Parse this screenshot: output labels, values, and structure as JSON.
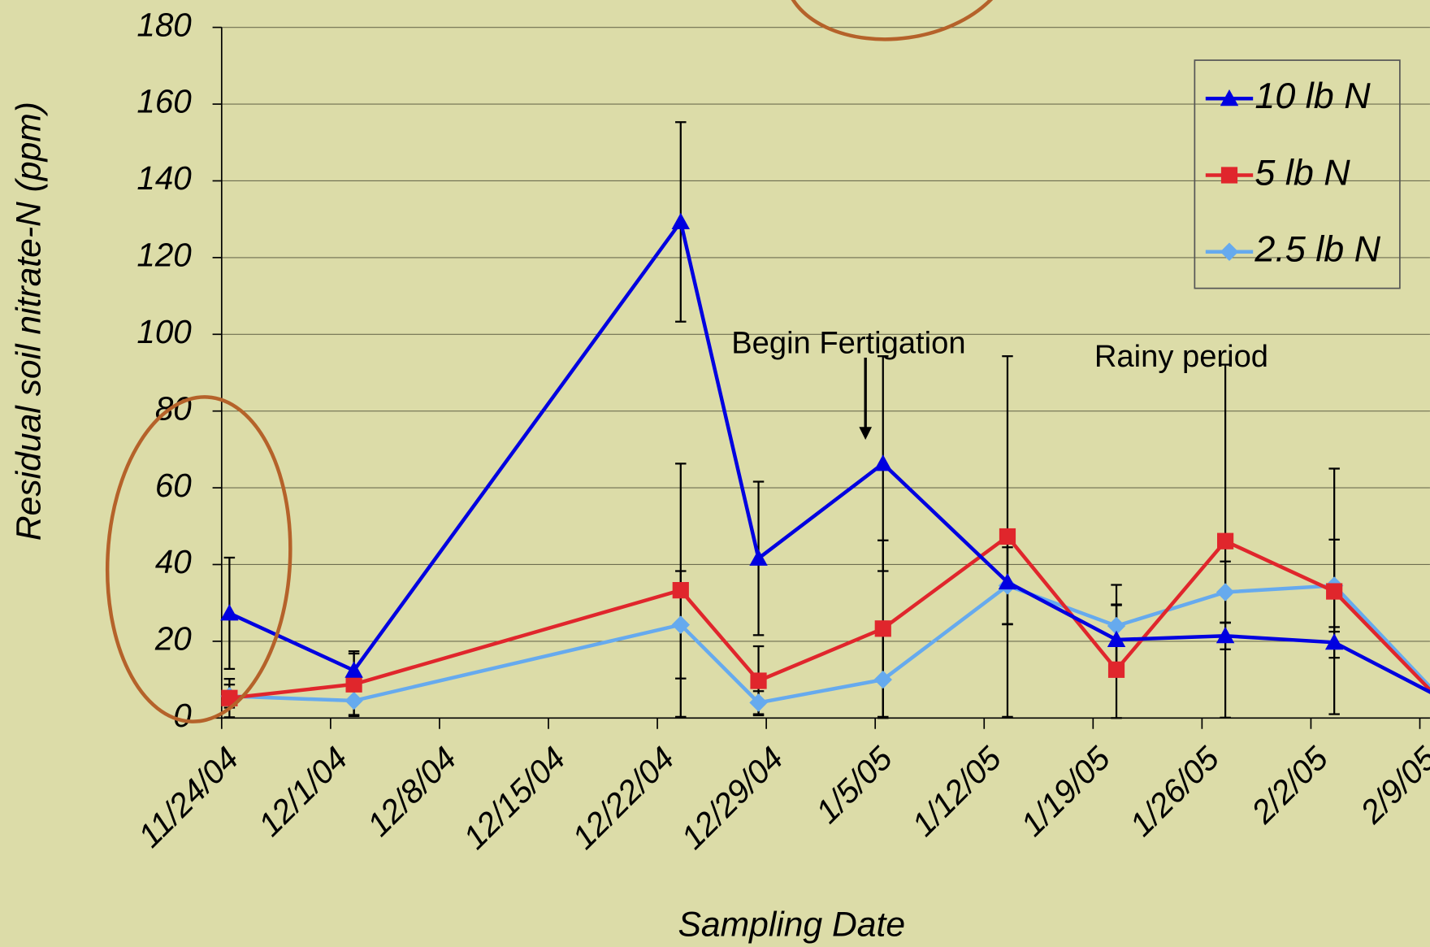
{
  "chart_data": {
    "type": "line",
    "x_label": "Sampling Date",
    "y_label": "Residual soil nitrate-N (ppm)",
    "x": [
      "11/24/04",
      "12/2/04",
      "12/23/04",
      "12/28/04",
      "1/5/05",
      "1/13/05",
      "1/20/05",
      "1/27/05",
      "2/3/05",
      "2/10/05"
    ],
    "series": [
      {
        "name": "10 lb N",
        "color": "#0000e0",
        "marker": "triangle",
        "values": [
          27.3,
          12.4,
          129.3,
          41.6,
          66.3,
          35.4,
          20.4,
          21.4,
          19.7,
          5
        ],
        "errors": [
          14.5,
          5,
          26,
          20,
          28,
          11,
          9,
          3.5,
          4,
          2
        ]
      },
      {
        "name": "5 lb N",
        "color": "#e0262c",
        "marker": "square",
        "values": [
          5.2,
          8.8,
          33.3,
          9.7,
          23.3,
          47.3,
          12.6,
          46.1,
          33,
          3.8
        ],
        "errors": [
          5,
          8,
          33,
          9,
          23,
          47,
          17,
          46,
          32,
          2
        ]
      },
      {
        "name": "2.5 lb N",
        "color": "#66aaee",
        "marker": "diamond",
        "values": [
          5.7,
          4.5,
          24.3,
          4,
          10,
          34.5,
          24,
          32.8,
          34.5,
          4.5
        ],
        "errors": [
          3,
          4,
          14,
          3,
          15,
          10,
          10.7,
          8,
          12,
          2
        ]
      }
    ],
    "xlim": [
      "11/24/04",
      "2/10/05"
    ],
    "xticks": [
      "11/24/04",
      "12/1/04",
      "12/8/04",
      "12/15/04",
      "12/22/04",
      "12/29/04",
      "1/5/05",
      "1/12/05",
      "1/19/05",
      "1/26/05",
      "2/2/05",
      "2/9/05"
    ],
    "ylim": [
      0,
      180
    ],
    "yticks": [
      0,
      20,
      40,
      60,
      80,
      100,
      120,
      140,
      160,
      180
    ],
    "grid": true,
    "legend": "upper right",
    "annotations": [
      "Begin Fertigation",
      "Rainy period"
    ]
  }
}
